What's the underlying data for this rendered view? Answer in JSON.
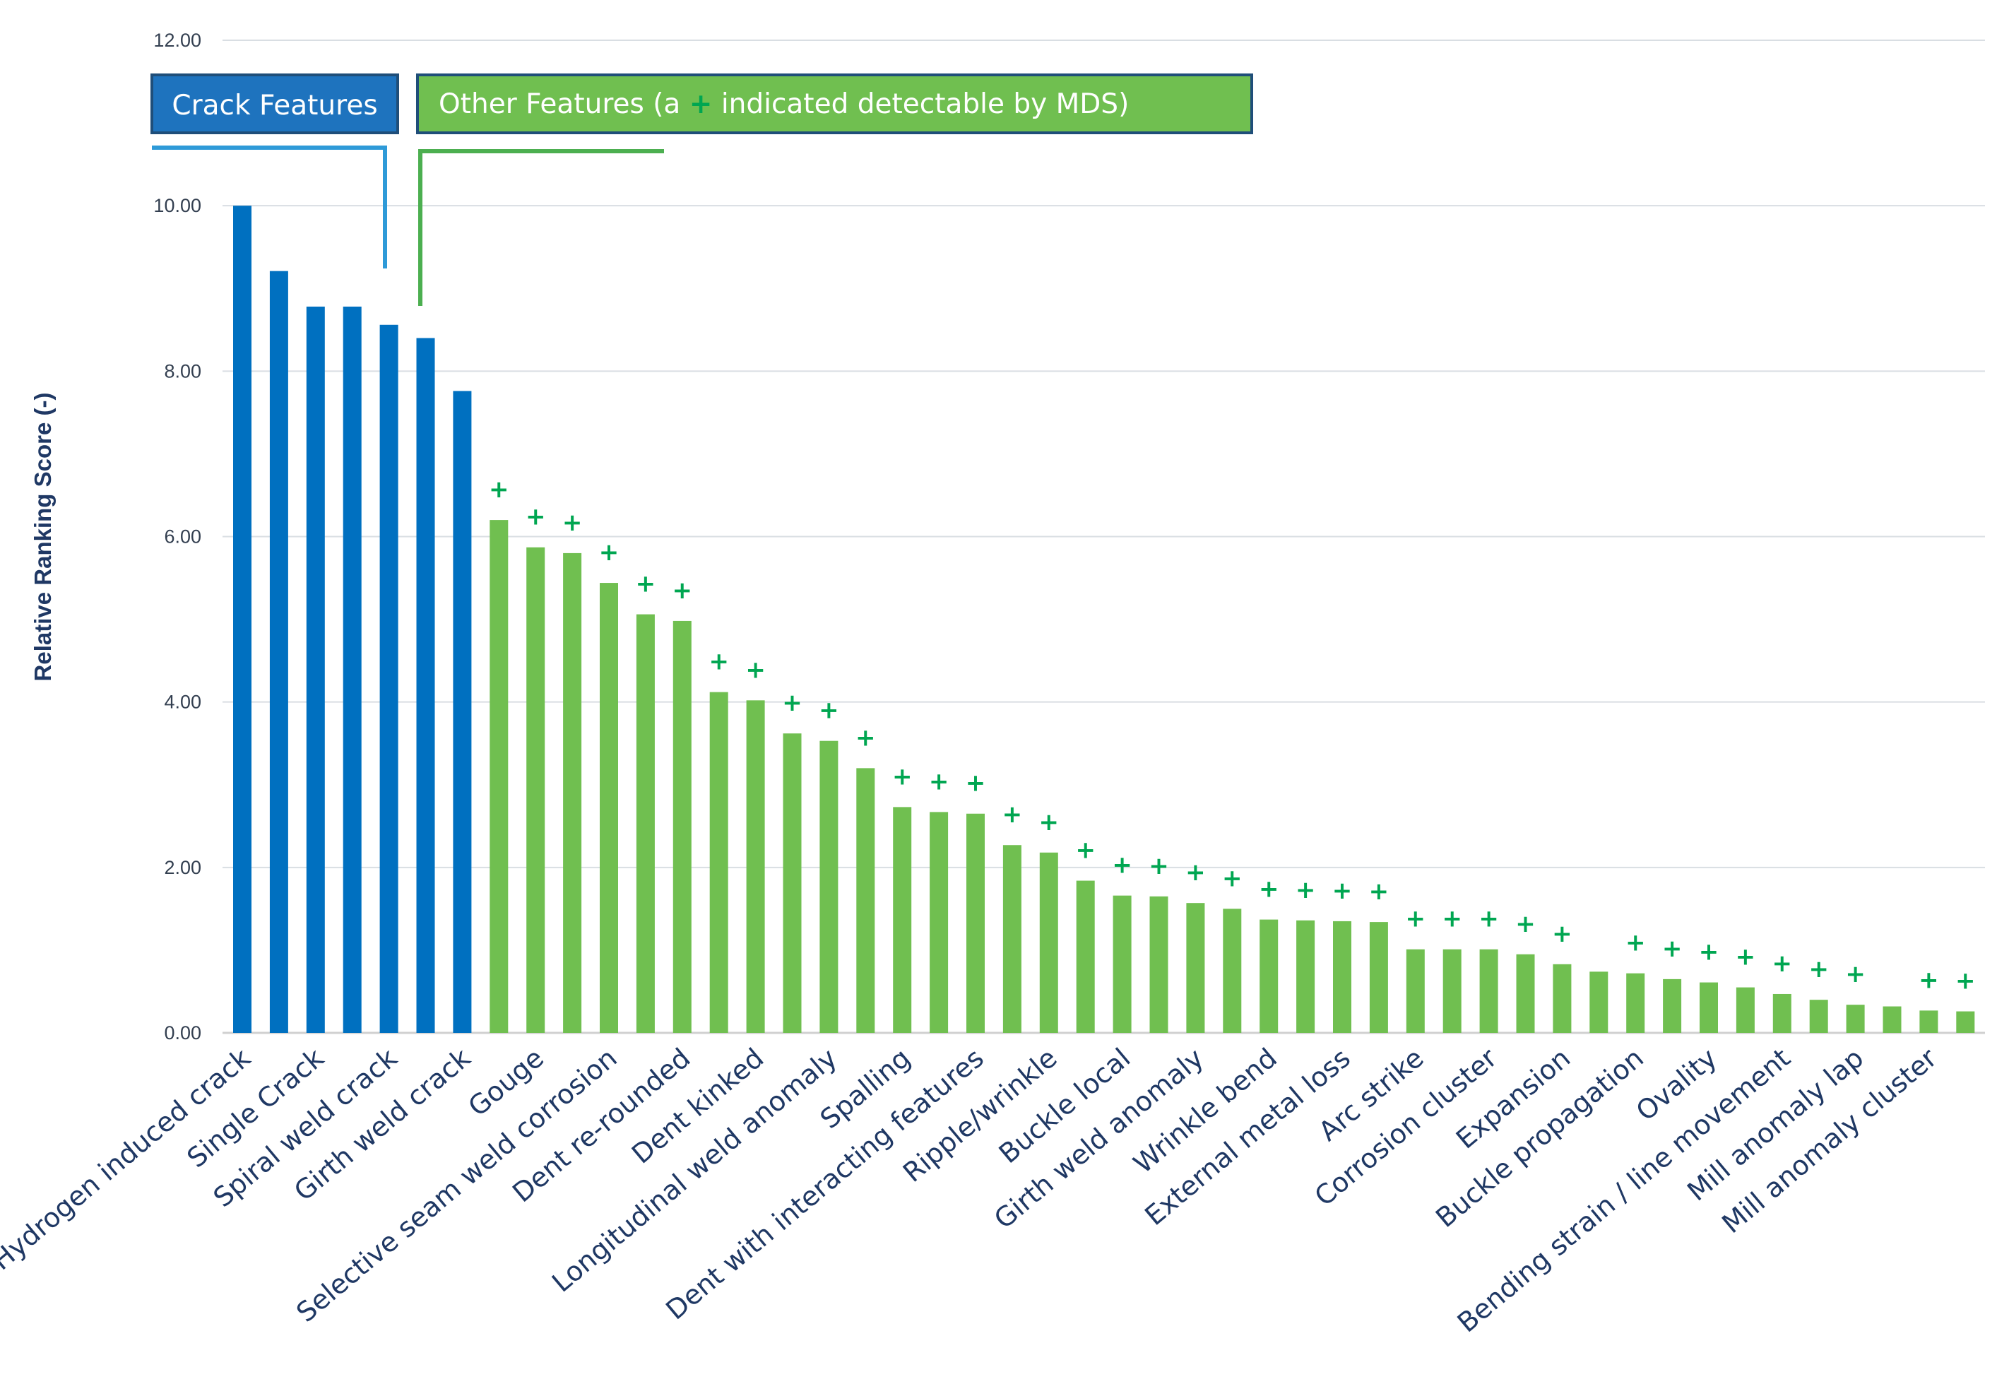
{
  "chart_data": {
    "type": "bar",
    "title": "",
    "xlabel": "",
    "ylabel": "Relative Ranking Score (-)",
    "ylim": [
      0,
      12
    ],
    "yticks": [
      "0.00",
      "2.00",
      "4.00",
      "6.00",
      "8.00",
      "10.00",
      "12.00"
    ],
    "grid": true,
    "colors": {
      "crack": "#0070c0",
      "other": "#70bf50",
      "plus": "#00a651",
      "grid": "#d9dee3",
      "legend_border": "#1f4e79"
    },
    "legend": {
      "crack_label": "Crack Features",
      "other_prefix": "Other Features (a ",
      "other_symbol": "+",
      "other_suffix": " indicated detectable by MDS)"
    },
    "bars": [
      {
        "group": "crack",
        "value": 10.0,
        "plus": false
      },
      {
        "group": "crack",
        "value": 9.21,
        "plus": false
      },
      {
        "group": "crack",
        "value": 8.78,
        "plus": false
      },
      {
        "group": "crack",
        "value": 8.78,
        "plus": false
      },
      {
        "group": "crack",
        "value": 8.56,
        "plus": false
      },
      {
        "group": "crack",
        "value": 8.4,
        "plus": false
      },
      {
        "group": "crack",
        "value": 7.76,
        "plus": false
      },
      {
        "group": "other",
        "value": 6.2,
        "plus": true
      },
      {
        "group": "other",
        "value": 5.87,
        "plus": true
      },
      {
        "group": "other",
        "value": 5.8,
        "plus": true
      },
      {
        "group": "other",
        "value": 5.44,
        "plus": true
      },
      {
        "group": "other",
        "value": 5.06,
        "plus": true
      },
      {
        "group": "other",
        "value": 4.98,
        "plus": true
      },
      {
        "group": "other",
        "value": 4.12,
        "plus": true
      },
      {
        "group": "other",
        "value": 4.02,
        "plus": true
      },
      {
        "group": "other",
        "value": 3.62,
        "plus": true
      },
      {
        "group": "other",
        "value": 3.53,
        "plus": true
      },
      {
        "group": "other",
        "value": 3.2,
        "plus": true
      },
      {
        "group": "other",
        "value": 2.73,
        "plus": true
      },
      {
        "group": "other",
        "value": 2.67,
        "plus": true
      },
      {
        "group": "other",
        "value": 2.65,
        "plus": true
      },
      {
        "group": "other",
        "value": 2.27,
        "plus": true
      },
      {
        "group": "other",
        "value": 2.18,
        "plus": true
      },
      {
        "group": "other",
        "value": 1.84,
        "plus": true
      },
      {
        "group": "other",
        "value": 1.66,
        "plus": true
      },
      {
        "group": "other",
        "value": 1.65,
        "plus": true
      },
      {
        "group": "other",
        "value": 1.57,
        "plus": true
      },
      {
        "group": "other",
        "value": 1.5,
        "plus": true
      },
      {
        "group": "other",
        "value": 1.37,
        "plus": true
      },
      {
        "group": "other",
        "value": 1.36,
        "plus": true
      },
      {
        "group": "other",
        "value": 1.35,
        "plus": true
      },
      {
        "group": "other",
        "value": 1.34,
        "plus": true
      },
      {
        "group": "other",
        "value": 1.01,
        "plus": true
      },
      {
        "group": "other",
        "value": 1.01,
        "plus": true
      },
      {
        "group": "other",
        "value": 1.01,
        "plus": true
      },
      {
        "group": "other",
        "value": 0.95,
        "plus": true
      },
      {
        "group": "other",
        "value": 0.83,
        "plus": true
      },
      {
        "group": "other",
        "value": 0.74,
        "plus": false
      },
      {
        "group": "other",
        "value": 0.72,
        "plus": true
      },
      {
        "group": "other",
        "value": 0.65,
        "plus": true
      },
      {
        "group": "other",
        "value": 0.61,
        "plus": true
      },
      {
        "group": "other",
        "value": 0.55,
        "plus": true
      },
      {
        "group": "other",
        "value": 0.47,
        "plus": true
      },
      {
        "group": "other",
        "value": 0.4,
        "plus": true
      },
      {
        "group": "other",
        "value": 0.34,
        "plus": true
      },
      {
        "group": "other",
        "value": 0.32,
        "plus": false
      },
      {
        "group": "other",
        "value": 0.27,
        "plus": true
      },
      {
        "group": "other",
        "value": 0.26,
        "plus": true
      }
    ],
    "labeled_categories": [
      {
        "bar": 0,
        "label": "Hydrogen induced crack"
      },
      {
        "bar": 2,
        "label": "Single Crack"
      },
      {
        "bar": 4,
        "label": "Spiral weld crack"
      },
      {
        "bar": 6,
        "label": "Girth weld crack"
      },
      {
        "bar": 8,
        "label": "Gouge"
      },
      {
        "bar": 10,
        "label": "Selective seam weld corrosion"
      },
      {
        "bar": 12,
        "label": "Dent re-rounded"
      },
      {
        "bar": 14,
        "label": "Dent kinked"
      },
      {
        "bar": 16,
        "label": "Longitudinal weld anomaly"
      },
      {
        "bar": 18,
        "label": "Spalling"
      },
      {
        "bar": 20,
        "label": "Dent with interacting features"
      },
      {
        "bar": 22,
        "label": "Ripple/wrinkle"
      },
      {
        "bar": 24,
        "label": "Buckle local"
      },
      {
        "bar": 26,
        "label": "Girth weld anomaly"
      },
      {
        "bar": 28,
        "label": "Wrinkle bend"
      },
      {
        "bar": 30,
        "label": "External metal loss"
      },
      {
        "bar": 32,
        "label": "Arc strike"
      },
      {
        "bar": 34,
        "label": "Corrosion cluster"
      },
      {
        "bar": 36,
        "label": "Expansion"
      },
      {
        "bar": 38,
        "label": "Buckle propagation"
      },
      {
        "bar": 40,
        "label": "Ovality"
      },
      {
        "bar": 42,
        "label": "Bending strain / line movement"
      },
      {
        "bar": 44,
        "label": "Mill anomaly lap"
      },
      {
        "bar": 46,
        "label": "Mill anomaly cluster"
      }
    ]
  }
}
